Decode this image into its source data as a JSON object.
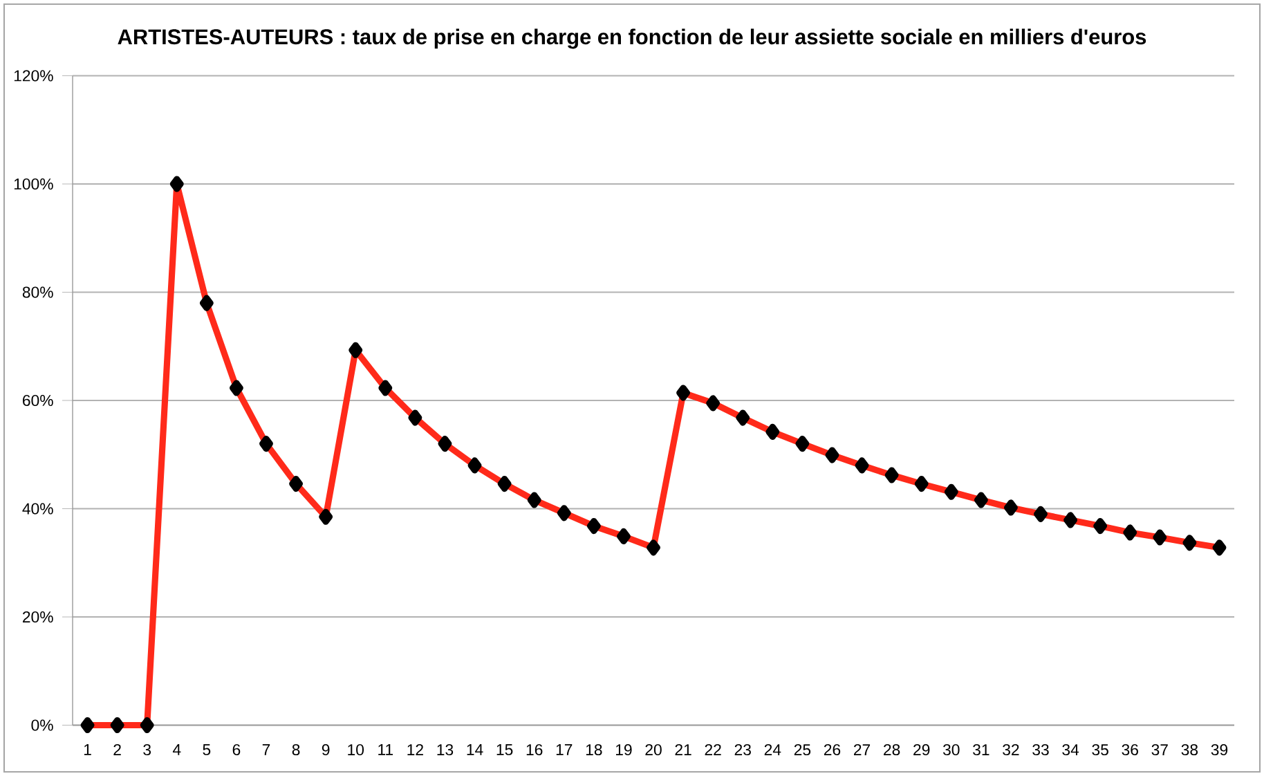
{
  "chart_data": {
    "type": "line",
    "title": "ARTISTES-AUTEURS : taux de prise en charge en fonction de leur assiette sociale en milliers d'euros",
    "categories": [
      "1",
      "2",
      "3",
      "4",
      "5",
      "6",
      "7",
      "8",
      "9",
      "10",
      "11",
      "12",
      "13",
      "14",
      "15",
      "16",
      "17",
      "18",
      "19",
      "20",
      "21",
      "22",
      "23",
      "24",
      "25",
      "26",
      "27",
      "28",
      "29",
      "30",
      "31",
      "32",
      "33",
      "34",
      "35",
      "36",
      "37",
      "38",
      "39"
    ],
    "series": [
      {
        "color": "#ff2a1a",
        "values": [
          0,
          0,
          0,
          100,
          78,
          62.3,
          52,
          44.6,
          38.5,
          69.3,
          62.3,
          56.8,
          52,
          48,
          44.6,
          41.6,
          39.2,
          36.8,
          34.9,
          32.8,
          61.4,
          59.5,
          56.8,
          54.2,
          52,
          49.9,
          48,
          46.2,
          44.6,
          43.1,
          41.6,
          40.2,
          39,
          37.9,
          36.8,
          35.6,
          34.7,
          33.7,
          32.8
        ]
      }
    ],
    "ylim": [
      0,
      120
    ],
    "yticks": [
      {
        "value": 0,
        "label": "0%"
      },
      {
        "value": 20,
        "label": "20%"
      },
      {
        "value": 40,
        "label": "40%"
      },
      {
        "value": 60,
        "label": "60%"
      },
      {
        "value": 80,
        "label": "80%"
      },
      {
        "value": 100,
        "label": "100%"
      },
      {
        "value": 120,
        "label": "120%"
      }
    ],
    "grid": "y",
    "marker": "diamond",
    "line_style": "solid"
  }
}
